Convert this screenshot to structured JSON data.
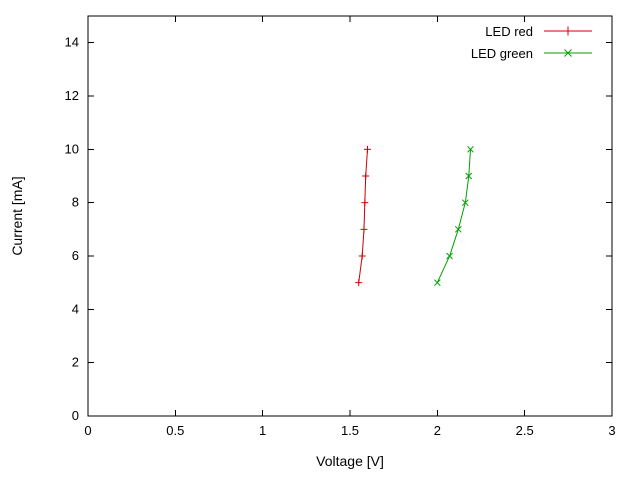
{
  "chart_data": {
    "type": "line",
    "title": "",
    "xlabel": "Voltage [V]",
    "ylabel": "Current [mA]",
    "xlim": [
      0,
      3
    ],
    "ylim": [
      0,
      15
    ],
    "grid": false,
    "legend_position": "top-right-inside",
    "xticks": {
      "values": [
        0,
        0.5,
        1,
        1.5,
        2,
        2.5,
        3
      ],
      "labels": [
        "0",
        "0.5",
        "1",
        "1.5",
        "2",
        "2.5",
        "3"
      ]
    },
    "yticks": {
      "values": [
        0,
        2,
        4,
        6,
        8,
        10,
        12,
        14
      ],
      "labels": [
        "0",
        "2",
        "4",
        "6",
        "8",
        "10",
        "12",
        "14"
      ]
    },
    "series": [
      {
        "name": "LED red",
        "color": "#cc0000",
        "marker": "plus",
        "points": [
          [
            1.55,
            5
          ],
          [
            1.57,
            6
          ],
          [
            1.58,
            7
          ],
          [
            1.585,
            8
          ],
          [
            1.59,
            9
          ],
          [
            1.6,
            10
          ]
        ]
      },
      {
        "name": "LED green",
        "color": "#00a000",
        "marker": "cross",
        "points": [
          [
            2.0,
            5
          ],
          [
            2.07,
            6
          ],
          [
            2.12,
            7
          ],
          [
            2.16,
            8
          ],
          [
            2.18,
            9
          ],
          [
            2.19,
            10
          ]
        ]
      }
    ]
  }
}
